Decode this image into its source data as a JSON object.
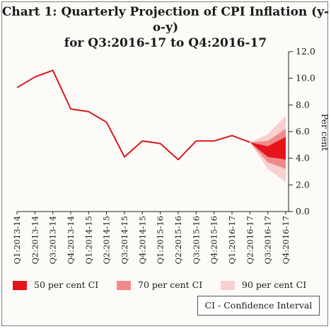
{
  "title_line1": "Chart 1: Quarterly Projection of CPI Inflation (y-o-y)",
  "title_line2": "for Q3:2016-17 to Q4:2016-17",
  "note": "CI - Confidence Interval",
  "colors": {
    "line": "#d7191c",
    "ci50": "#e8141b",
    "ci70": "#f08a8a",
    "ci90": "#f9d0d0"
  },
  "legend": [
    {
      "label": "50 per cent CI",
      "color": "#e8141b"
    },
    {
      "label": "70 per cent CI",
      "color": "#f08a8a"
    },
    {
      "label": "90 per cent CI",
      "color": "#f9d0d0"
    }
  ],
  "chart_data": {
    "type": "line",
    "ylabel": "Per cent",
    "ylim": [
      0,
      12
    ],
    "yticks": [
      "0.0",
      "2.0",
      "4.0",
      "6.0",
      "8.0",
      "10.0",
      "12.0"
    ],
    "y_axis_position": "right",
    "categories": [
      "Q1:2013-14",
      "Q2:2013-14",
      "Q3:2013-14",
      "Q4:2013-14",
      "Q1:2014-15",
      "Q2:2014-15",
      "Q3:2014-15",
      "Q4:2014-15",
      "Q1:2015-16",
      "Q2:2015-16",
      "Q3:2015-16",
      "Q4:2015-16",
      "Q1:2016-17",
      "Q2:2016-17",
      "Q3:2016-17",
      "Q4:2016-17"
    ],
    "series": [
      {
        "values": [
          9.3,
          10.1,
          10.6,
          7.7,
          7.5,
          6.7,
          4.1,
          5.3,
          5.1,
          3.9,
          5.3,
          5.3,
          5.7,
          5.2,
          null,
          null
        ]
      }
    ],
    "fan": {
      "start_index": 13,
      "start_value": 5.2,
      "ci50": {
        "lower": [
          4.1,
          3.9
        ],
        "upper": [
          4.9,
          5.6
        ]
      },
      "ci70": {
        "lower": [
          3.7,
          3.2
        ],
        "upper": [
          5.3,
          6.2
        ]
      },
      "ci90": {
        "lower": [
          3.2,
          2.2
        ],
        "upper": [
          5.8,
          7.2
        ]
      }
    },
    "grid": false,
    "legend_position": "bottom"
  }
}
